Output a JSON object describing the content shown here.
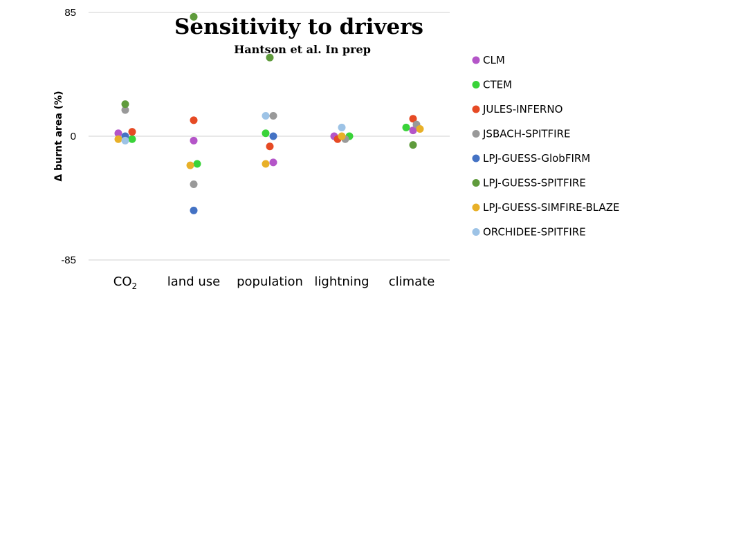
{
  "chart_data": {
    "type": "scatter",
    "title": "Sensitivity to  drivers",
    "subtitle": "Hantson et al. In prep",
    "ylabel": "Δ burnt area (%)",
    "ylim": [
      -85,
      85
    ],
    "yticks": [
      "85",
      "0",
      "-85"
    ],
    "categories": [
      {
        "base": "CO",
        "sub": "2"
      },
      {
        "base": "land use",
        "sub": ""
      },
      {
        "base": "population",
        "sub": ""
      },
      {
        "base": "lightning",
        "sub": ""
      },
      {
        "base": "climate",
        "sub": ""
      }
    ],
    "grid": "horizontal",
    "legend_position": "right",
    "series": [
      {
        "name": "CLM",
        "color": "#b455c8",
        "values": [
          2,
          -3,
          -18,
          0,
          4
        ]
      },
      {
        "name": "CTEM",
        "color": "#39d339",
        "values": [
          -2,
          -19,
          2,
          0,
          6
        ]
      },
      {
        "name": "JULES-INFERNO",
        "color": "#e64a24",
        "values": [
          3,
          11,
          -7,
          -2,
          12
        ]
      },
      {
        "name": "JSBACH-SPITFIRE",
        "color": "#999999",
        "values": [
          18,
          -33,
          14,
          -2,
          8
        ]
      },
      {
        "name": "LPJ-GUESS-GlobFIRM",
        "color": "#4472c4",
        "values": [
          0,
          -51,
          0,
          null,
          null
        ]
      },
      {
        "name": "LPJ-GUESS-SPITFIRE",
        "color": "#5f9b3c",
        "values": [
          22,
          82,
          54,
          null,
          -6
        ]
      },
      {
        "name": "LPJ-GUESS-SIMFIRE-BLAZE",
        "color": "#e8b028",
        "values": [
          -2,
          -20,
          -19,
          0,
          5
        ]
      },
      {
        "name": "ORCHIDEE-SPITFIRE",
        "color": "#9dc3e6",
        "values": [
          -3,
          null,
          14,
          6,
          null
        ]
      }
    ]
  }
}
